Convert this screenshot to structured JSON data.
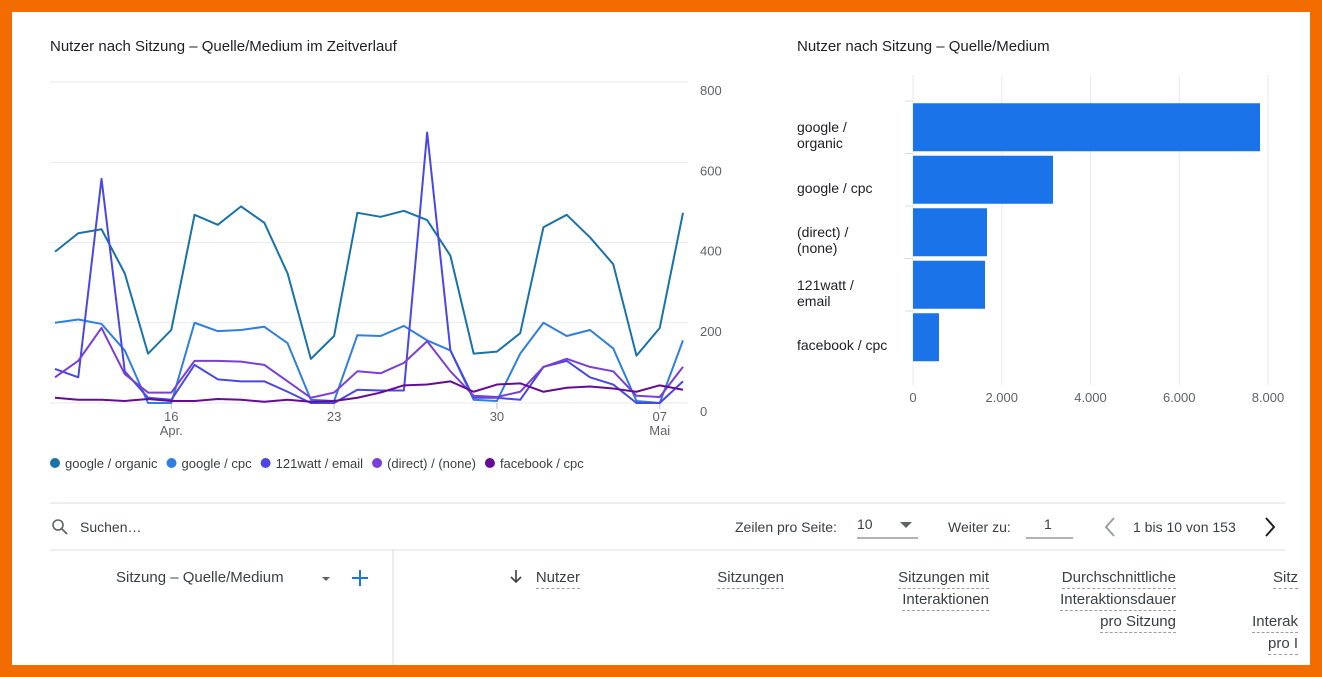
{
  "chart_data": [
    {
      "type": "line",
      "title": "Nutzer nach Sitzung – Quelle/Medium im Zeitverlauf",
      "categories": [
        null,
        null,
        null,
        null,
        null,
        "16 Apr.",
        null,
        null,
        null,
        null,
        null,
        null,
        "23",
        null,
        null,
        null,
        null,
        null,
        null,
        "30",
        null,
        null,
        null,
        null,
        null,
        null,
        "07 Mai",
        null
      ],
      "series": [
        {
          "name": "google / organic",
          "color": "#1a73a8",
          "values": [
            377,
            423,
            433,
            323,
            123,
            182,
            469,
            444,
            490,
            449,
            323,
            110,
            167,
            474,
            464,
            479,
            456,
            367,
            123,
            128,
            174,
            438,
            469,
            413,
            346,
            118,
            187,
            474
          ]
        },
        {
          "name": "google / cpc",
          "color": "#2f7fe0",
          "values": [
            200,
            208,
            197,
            131,
            0,
            0,
            200,
            179,
            182,
            190,
            149,
            8,
            5,
            169,
            167,
            192,
            156,
            131,
            8,
            5,
            123,
            200,
            167,
            182,
            136,
            5,
            0,
            156
          ]
        },
        {
          "name": "121watt / email",
          "color": "#4a48e4",
          "values": [
            85,
            64,
            559,
            79,
            13,
            8,
            95,
            59,
            54,
            54,
            28,
            0,
            0,
            33,
            31,
            31,
            674,
            131,
            13,
            13,
            8,
            90,
            105,
            64,
            46,
            0,
            0,
            54
          ]
        },
        {
          "name": "(direct) / (none)",
          "color": "#7b3fd6",
          "values": [
            64,
            105,
            187,
            72,
            26,
            26,
            105,
            105,
            103,
            95,
            54,
            13,
            26,
            79,
            74,
            100,
            154,
            79,
            18,
            15,
            28,
            90,
            110,
            90,
            79,
            18,
            15,
            90
          ]
        },
        {
          "name": "facebook / cpc",
          "color": "#650c96",
          "values": [
            13,
            8,
            8,
            5,
            10,
            5,
            5,
            10,
            8,
            3,
            8,
            3,
            5,
            13,
            26,
            44,
            46,
            54,
            28,
            46,
            49,
            28,
            38,
            41,
            36,
            28,
            44,
            33
          ]
        }
      ],
      "ylim": [
        0,
        800
      ],
      "yticks": [
        0,
        200,
        400,
        600,
        800
      ],
      "grid": true,
      "legend": "bottom"
    },
    {
      "type": "hbar",
      "title": "Nutzer nach Sitzung – Quelle/Medium",
      "categories": [
        "google / organic",
        "google / cpc",
        "(direct) / (none)",
        "121watt / email",
        "facebook / cpc"
      ],
      "values": [
        7820,
        3155,
        1668,
        1623,
        586
      ],
      "color": "#1a73e8",
      "xlim": [
        0,
        8000
      ],
      "xticks": [
        0,
        {
          "value": 2000,
          "label": "2.000"
        },
        {
          "value": 4000,
          "label": "4.000"
        },
        {
          "value": 6000,
          "label": "6.000"
        },
        {
          "value": 8000,
          "label": "8.000"
        }
      ],
      "grid": true
    }
  ],
  "toolbar": {
    "search": "Suchen…",
    "rows_label": "Zeilen pro Seite:",
    "rows_value": "10",
    "goto_label": "Weiter zu:",
    "goto_value": "1",
    "range": "1 bis 10 von 153"
  },
  "table": {
    "dimension": "Sitzung – Quelle/Medium",
    "headers": [
      [
        "Nutzer"
      ],
      [
        "Sitzungen"
      ],
      [
        "Sitzungen mit",
        "Interaktionen"
      ],
      [
        "Durchschnittliche",
        "Interaktionsdauer",
        "pro Sitzung"
      ],
      [
        "Sitz",
        "Interak",
        "pro I"
      ]
    ]
  }
}
